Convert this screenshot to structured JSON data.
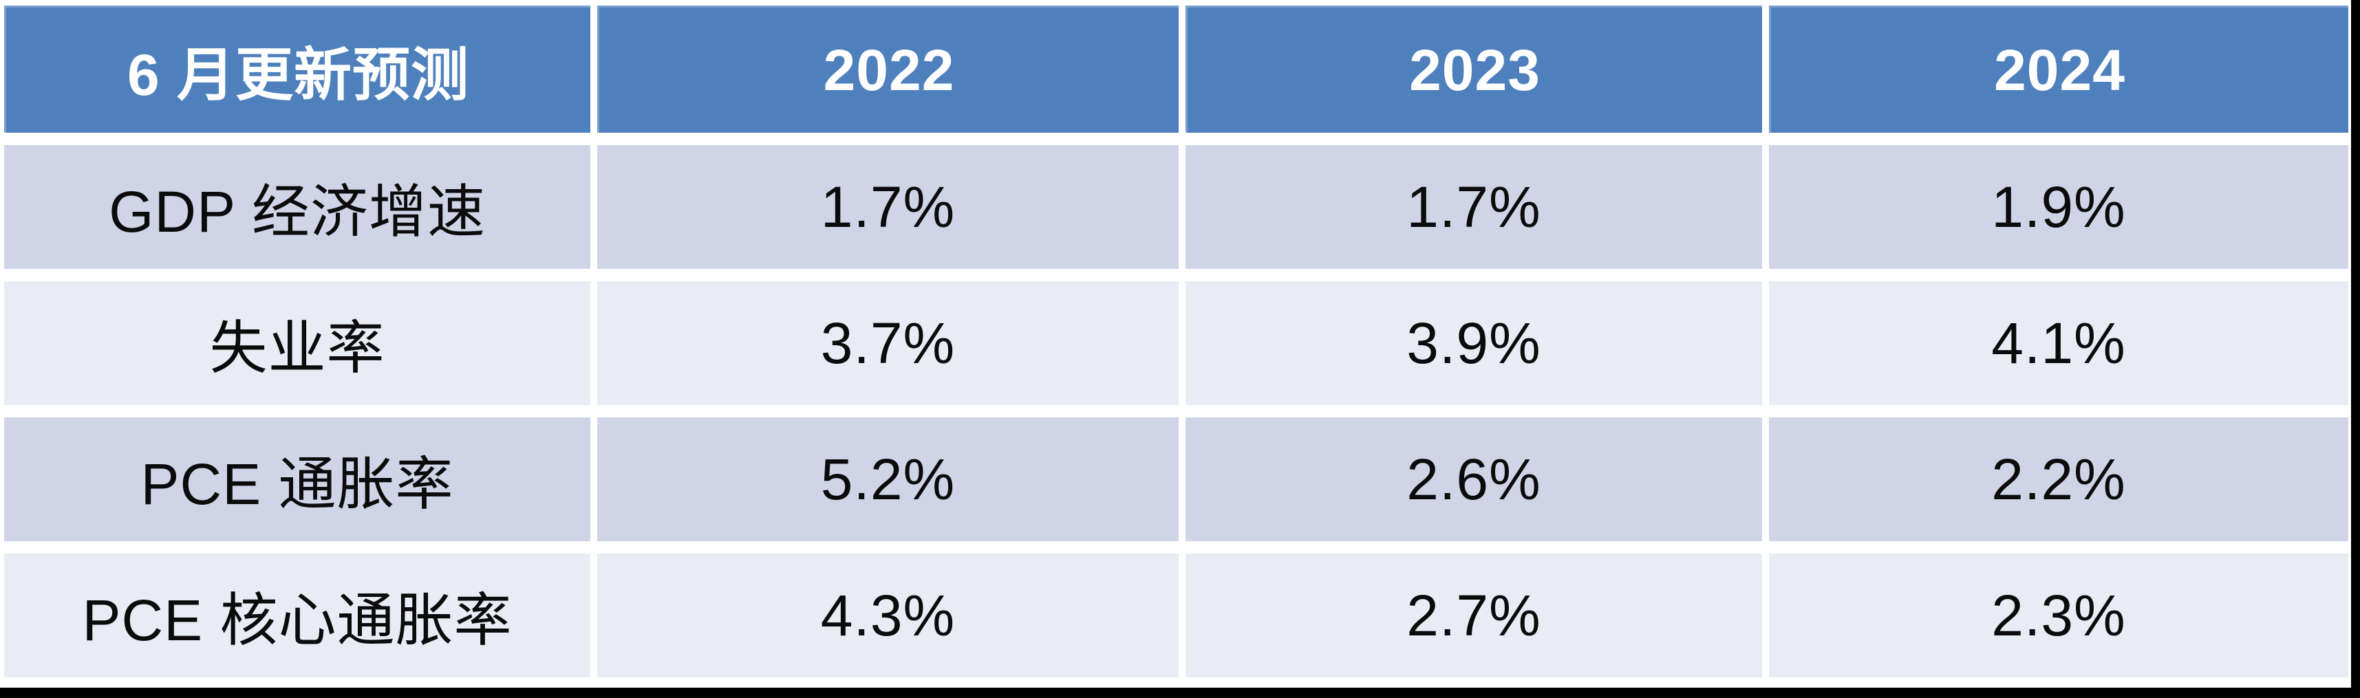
{
  "chart_data": {
    "type": "table",
    "title": "6 月更新预测",
    "header": {
      "corner": "6 月更新预测",
      "years": [
        "2022",
        "2023",
        "2024"
      ]
    },
    "rows": [
      {
        "label": "GDP 经济增速",
        "values": [
          "1.7%",
          "1.7%",
          "1.9%"
        ]
      },
      {
        "label": "失业率",
        "values": [
          "3.7%",
          "3.9%",
          "4.1%"
        ]
      },
      {
        "label": "PCE 通胀率",
        "values": [
          "5.2%",
          "2.6%",
          "2.2%"
        ]
      },
      {
        "label": "PCE 核心通胀率",
        "values": [
          "4.3%",
          "2.7%",
          "2.3%"
        ]
      }
    ],
    "layout": {
      "columns": 4,
      "data_rows": 4,
      "grid": "white gaps between cells, no inner borders"
    }
  },
  "colors": {
    "header_bg": "#4E80BD",
    "header_text": "#FFFFFF",
    "row_odd_bg": "#CFD5E7",
    "row_even_bg": "#E9ECF5",
    "cell_gap": "#FFFFFF",
    "body_text": "#0B0B0B",
    "frame_shadow": "#000000"
  }
}
